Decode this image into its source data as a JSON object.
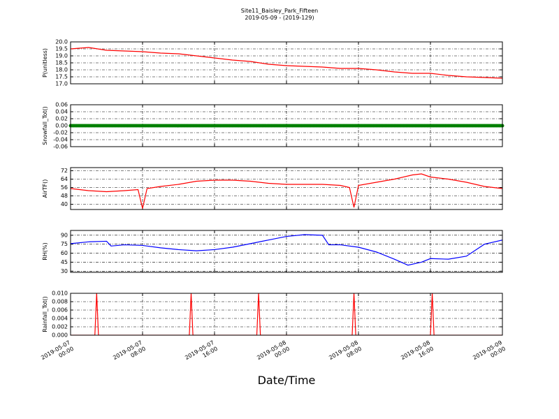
{
  "title": "Site11_Baisley_Park_Fifteen",
  "subtitle": "2019-05-09 - (2019-129)",
  "xlabel": "Date/Time",
  "chart_data": [
    {
      "type": "line",
      "ylabel": "P(unitless)",
      "color": "#ff0000",
      "grid": true,
      "xlim": [
        "2019-05-07 00:00",
        "2019-05-09 00:00"
      ],
      "xticks": [
        "2019-05-07 00:00",
        "2019-05-07 08:00",
        "2019-05-07 16:00",
        "2019-05-08 00:00",
        "2019-05-08 08:00",
        "2019-05-08 16:00",
        "2019-05-09 00:00"
      ],
      "ylim": [
        17,
        20
      ],
      "yticks": [
        {
          "value": 17,
          "label": "17.0"
        },
        {
          "value": 17.5,
          "label": "17.5"
        },
        {
          "value": 18,
          "label": "18.0"
        },
        {
          "value": 18.5,
          "label": "18.5"
        },
        {
          "value": 19,
          "label": "19.0"
        },
        {
          "value": 19.5,
          "label": "19.5"
        },
        {
          "value": 20,
          "label": "20.0"
        }
      ],
      "x": [
        "2019-05-07 00:00",
        "2019-05-07 02:00",
        "2019-05-07 04:00",
        "2019-05-07 06:00",
        "2019-05-07 08:00",
        "2019-05-07 10:00",
        "2019-05-07 12:00",
        "2019-05-07 14:00",
        "2019-05-07 16:00",
        "2019-05-07 18:00",
        "2019-05-07 20:00",
        "2019-05-07 22:00",
        "2019-05-08 00:00",
        "2019-05-08 02:00",
        "2019-05-08 04:00",
        "2019-05-08 06:00",
        "2019-05-08 08:00",
        "2019-05-08 10:00",
        "2019-05-08 12:00",
        "2019-05-08 14:00",
        "2019-05-08 16:00",
        "2019-05-08 18:00",
        "2019-05-08 20:00",
        "2019-05-08 22:00",
        "2019-05-09 00:00"
      ],
      "values": [
        19.5,
        19.6,
        19.4,
        19.35,
        19.3,
        19.2,
        19.15,
        19.0,
        18.85,
        18.7,
        18.6,
        18.4,
        18.3,
        18.25,
        18.2,
        18.1,
        18.1,
        18.0,
        17.85,
        17.75,
        17.75,
        17.6,
        17.5,
        17.45,
        17.4
      ]
    },
    {
      "type": "line",
      "ylabel": "Snowfall_Tot()",
      "color": "#008000",
      "markers": true,
      "grid": true,
      "xlim": [
        "2019-05-07 00:00",
        "2019-05-09 00:00"
      ],
      "xticks": [
        "2019-05-07 00:00",
        "2019-05-07 08:00",
        "2019-05-07 16:00",
        "2019-05-08 00:00",
        "2019-05-08 08:00",
        "2019-05-08 16:00",
        "2019-05-09 00:00"
      ],
      "ylim": [
        -0.06,
        0.06
      ],
      "yticks": [
        -0.06,
        -0.04,
        -0.02,
        {
          "value": 0,
          "label": "0.00"
        },
        0.02,
        0.04,
        0.06
      ],
      "x": [
        "2019-05-07 00:00",
        "2019-05-07 02:00",
        "2019-05-07 04:00",
        "2019-05-07 06:00",
        "2019-05-07 08:00",
        "2019-05-07 10:00",
        "2019-05-07 12:00",
        "2019-05-07 14:00",
        "2019-05-07 16:00",
        "2019-05-07 18:00",
        "2019-05-07 20:00",
        "2019-05-07 22:00",
        "2019-05-08 00:00",
        "2019-05-08 02:00",
        "2019-05-08 04:00",
        "2019-05-08 06:00",
        "2019-05-08 08:00",
        "2019-05-08 10:00",
        "2019-05-08 12:00",
        "2019-05-08 14:00",
        "2019-05-08 16:00",
        "2019-05-08 18:00",
        "2019-05-08 20:00",
        "2019-05-08 22:00",
        "2019-05-09 00:00"
      ],
      "values": [
        0,
        0,
        0,
        0,
        0,
        0,
        0,
        0,
        0,
        0,
        0,
        0,
        0,
        0,
        0,
        0,
        0,
        0,
        0,
        0,
        0,
        0,
        0,
        0,
        0
      ]
    },
    {
      "type": "line",
      "ylabel": "AirTF()",
      "color": "#ff0000",
      "grid": true,
      "xlim": [
        "2019-05-07 00:00",
        "2019-05-09 00:00"
      ],
      "xticks": [
        "2019-05-07 00:00",
        "2019-05-07 08:00",
        "2019-05-07 16:00",
        "2019-05-08 00:00",
        "2019-05-08 08:00",
        "2019-05-08 16:00",
        "2019-05-09 00:00"
      ],
      "ylim": [
        35,
        75
      ],
      "yticks": [
        40,
        48,
        56,
        64,
        72
      ],
      "x": [
        "2019-05-07 00:00",
        "2019-05-07 02:00",
        "2019-05-07 04:00",
        "2019-05-07 06:00",
        "2019-05-07 07:30",
        "2019-05-07 08:00",
        "2019-05-07 08:30",
        "2019-05-07 10:00",
        "2019-05-07 12:00",
        "2019-05-07 14:00",
        "2019-05-07 16:00",
        "2019-05-07 18:00",
        "2019-05-07 20:00",
        "2019-05-07 22:00",
        "2019-05-08 00:00",
        "2019-05-08 02:00",
        "2019-05-08 04:00",
        "2019-05-08 06:00",
        "2019-05-08 07:00",
        "2019-05-08 07:30",
        "2019-05-08 08:00",
        "2019-05-08 10:00",
        "2019-05-08 12:00",
        "2019-05-08 14:00",
        "2019-05-08 15:00",
        "2019-05-08 16:00",
        "2019-05-08 18:00",
        "2019-05-08 20:00",
        "2019-05-08 22:00",
        "2019-05-09 00:00"
      ],
      "values": [
        55,
        53,
        52,
        53,
        54,
        36,
        55,
        57,
        59,
        62,
        63,
        63,
        62,
        60,
        59,
        59,
        59,
        58,
        56,
        37,
        58,
        61,
        64,
        68,
        69,
        66,
        64,
        61,
        57,
        55
      ]
    },
    {
      "type": "line",
      "ylabel": "RH(%)",
      "color": "#0000ff",
      "grid": true,
      "xlim": [
        "2019-05-07 00:00",
        "2019-05-09 00:00"
      ],
      "xticks": [
        "2019-05-07 00:00",
        "2019-05-07 08:00",
        "2019-05-07 16:00",
        "2019-05-08 00:00",
        "2019-05-08 08:00",
        "2019-05-08 16:00",
        "2019-05-09 00:00"
      ],
      "ylim": [
        28,
        98
      ],
      "yticks": [
        30,
        45,
        60,
        75,
        90
      ],
      "x": [
        "2019-05-07 00:00",
        "2019-05-07 02:00",
        "2019-05-07 04:00",
        "2019-05-07 04:30",
        "2019-05-07 06:00",
        "2019-05-07 08:00",
        "2019-05-07 10:00",
        "2019-05-07 12:00",
        "2019-05-07 14:00",
        "2019-05-07 16:00",
        "2019-05-07 18:00",
        "2019-05-07 20:00",
        "2019-05-07 22:00",
        "2019-05-08 00:00",
        "2019-05-08 02:00",
        "2019-05-08 04:00",
        "2019-05-08 04:42",
        "2019-05-08 06:00",
        "2019-05-08 08:00",
        "2019-05-08 10:00",
        "2019-05-08 12:00",
        "2019-05-08 13:30",
        "2019-05-08 15:00",
        "2019-05-08 16:00",
        "2019-05-08 18:00",
        "2019-05-08 20:00",
        "2019-05-08 22:00",
        "2019-05-09 00:00"
      ],
      "values": [
        76,
        79,
        80,
        72,
        74,
        73,
        69,
        66,
        64,
        66,
        70,
        76,
        82,
        88,
        91,
        90,
        74,
        74,
        70,
        62,
        50,
        40,
        45,
        51,
        50,
        55,
        75,
        82
      ]
    },
    {
      "type": "line",
      "ylabel": "Rainfall_Tot()",
      "color": "#ff0000",
      "grid": true,
      "xlim": [
        "2019-05-07 00:00",
        "2019-05-09 00:00"
      ],
      "xticks": [
        "2019-05-07 00:00",
        "2019-05-07 08:00",
        "2019-05-07 16:00",
        "2019-05-08 00:00",
        "2019-05-08 08:00",
        "2019-05-08 16:00",
        "2019-05-09 00:00"
      ],
      "ylim": [
        0,
        0.01
      ],
      "yticks": [
        {
          "value": 0,
          "label": "0.000"
        },
        {
          "value": 0.002,
          "label": "0.002"
        },
        {
          "value": 0.004,
          "label": "0.004"
        },
        {
          "value": 0.006,
          "label": "0.006"
        },
        {
          "value": 0.008,
          "label": "0.008"
        },
        {
          "value": 0.01,
          "label": "0.010"
        }
      ],
      "x": [
        "2019-05-07 00:00",
        "2019-05-07 02:42",
        "2019-05-07 02:54",
        "2019-05-07 03:06",
        "2019-05-07 13:12",
        "2019-05-07 13:24",
        "2019-05-07 13:36",
        "2019-05-07 20:42",
        "2019-05-07 20:54",
        "2019-05-07 21:06",
        "2019-05-08 07:18",
        "2019-05-08 07:30",
        "2019-05-08 07:42",
        "2019-05-08 16:00",
        "2019-05-08 16:12",
        "2019-05-08 16:24",
        "2019-05-09 00:00"
      ],
      "values": [
        0,
        0,
        0.01,
        0,
        0,
        0.01,
        0,
        0,
        0.01,
        0,
        0,
        0.01,
        0,
        0,
        0.01,
        0,
        0
      ]
    }
  ]
}
